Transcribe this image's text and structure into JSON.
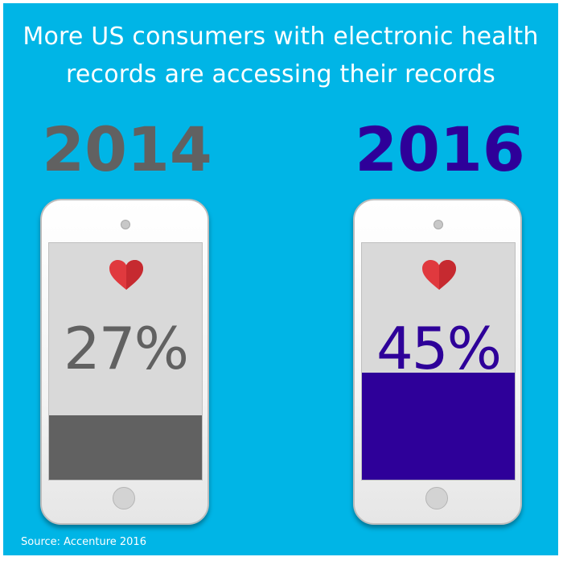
{
  "title_lines": [
    "More US consumers with electronic health",
    "records are accessing their records"
  ],
  "source": "Source: Accenture 2016",
  "colors": {
    "background": "#00b5e6",
    "year_2014": "#616161",
    "year_2016": "#2e0099",
    "heart": "#e0393e"
  },
  "chart_data": {
    "type": "bar",
    "title": "More US consumers with electronic health records are accessing their records",
    "categories": [
      "2014",
      "2016"
    ],
    "values": [
      27,
      45
    ],
    "value_labels": [
      "27%",
      "45%"
    ],
    "ylim": [
      0,
      100
    ],
    "icons": [
      "smartphone-icon",
      "heart-icon"
    ]
  }
}
